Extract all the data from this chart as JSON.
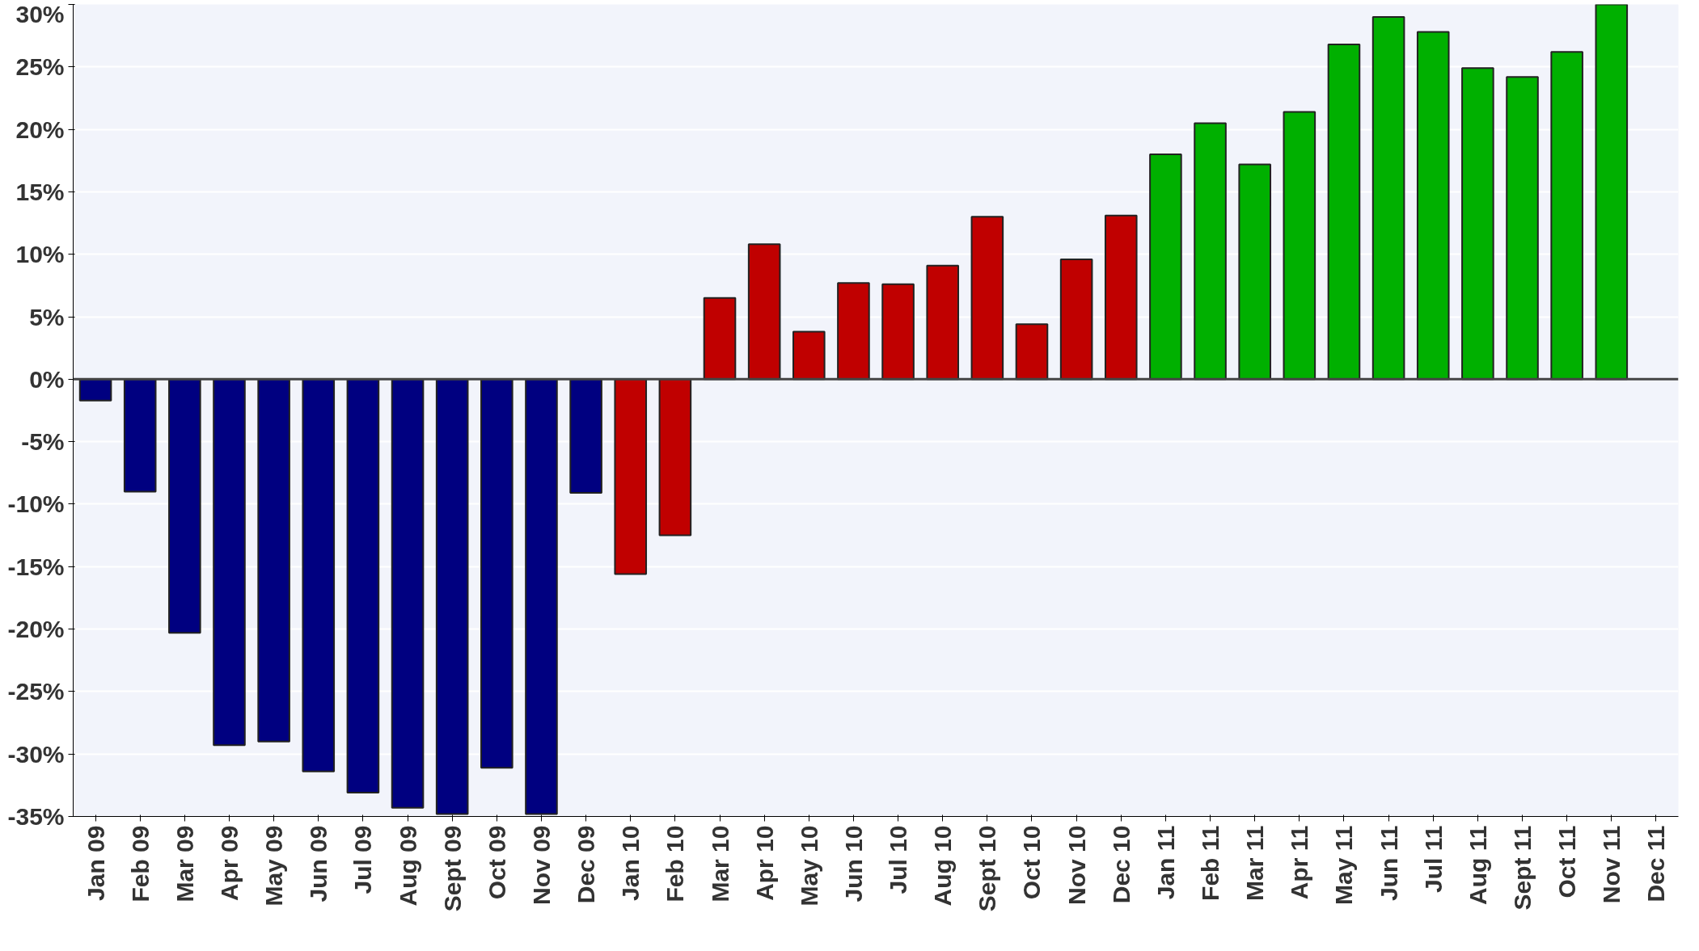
{
  "chart_data": {
    "type": "bar",
    "categories": [
      "Jan 09",
      "Feb 09",
      "Mar 09",
      "Apr 09",
      "May 09",
      "Jun 09",
      "Jul 09",
      "Aug 09",
      "Sept 09",
      "Oct 09",
      "Nov 09",
      "Dec 09",
      "Jan 10",
      "Feb 10",
      "Mar 10",
      "Apr 10",
      "May 10",
      "Jun 10",
      "Jul 10",
      "Aug 10",
      "Sept 10",
      "Oct 10",
      "Nov 10",
      "Dec 10",
      "Jan 11",
      "Feb 11",
      "Mar 11",
      "Apr 11",
      "May 11",
      "Jun 11",
      "Jul 11",
      "Aug 11",
      "Sept 11",
      "Oct 11",
      "Nov 11",
      "Dec 11"
    ],
    "values": [
      -1.7,
      -9.0,
      -20.3,
      -29.3,
      -29.0,
      -31.4,
      -33.1,
      -34.3,
      -34.8,
      -31.1,
      -34.8,
      -9.1,
      -15.6,
      -12.5,
      6.5,
      10.8,
      3.8,
      7.7,
      7.6,
      9.1,
      13.0,
      4.4,
      9.6,
      13.1,
      18.0,
      20.5,
      17.2,
      21.4,
      26.8,
      29.0,
      27.8,
      24.9,
      24.2,
      26.2,
      30.0,
      null
    ],
    "colors": [
      "#000080",
      "#000080",
      "#000080",
      "#000080",
      "#000080",
      "#000080",
      "#000080",
      "#000080",
      "#000080",
      "#000080",
      "#000080",
      "#000080",
      "#c00000",
      "#c00000",
      "#c00000",
      "#c00000",
      "#c00000",
      "#c00000",
      "#c00000",
      "#c00000",
      "#c00000",
      "#c00000",
      "#c00000",
      "#c00000",
      "#00b000",
      "#00b000",
      "#00b000",
      "#00b000",
      "#00b000",
      "#00b000",
      "#00b000",
      "#00b000",
      "#00b000",
      "#00b000",
      "#00b000",
      "#00b000"
    ],
    "ylim": [
      -35,
      30
    ],
    "yticks": [
      {
        "value": -35,
        "label": "-35%"
      },
      {
        "value": -30,
        "label": "-30%"
      },
      {
        "value": -25,
        "label": "-25%"
      },
      {
        "value": -20,
        "label": "-20%"
      },
      {
        "value": -15,
        "label": "-15%"
      },
      {
        "value": -10,
        "label": "-10%"
      },
      {
        "value": -5,
        "label": "-5%"
      },
      {
        "value": 0,
        "label": "0%"
      },
      {
        "value": 5,
        "label": "5%"
      },
      {
        "value": 10,
        "label": "10%"
      },
      {
        "value": 15,
        "label": "15%"
      },
      {
        "value": 20,
        "label": "20%"
      },
      {
        "value": 25,
        "label": "25%"
      },
      {
        "value": 30,
        "label": "30%"
      }
    ],
    "grid": "y"
  }
}
